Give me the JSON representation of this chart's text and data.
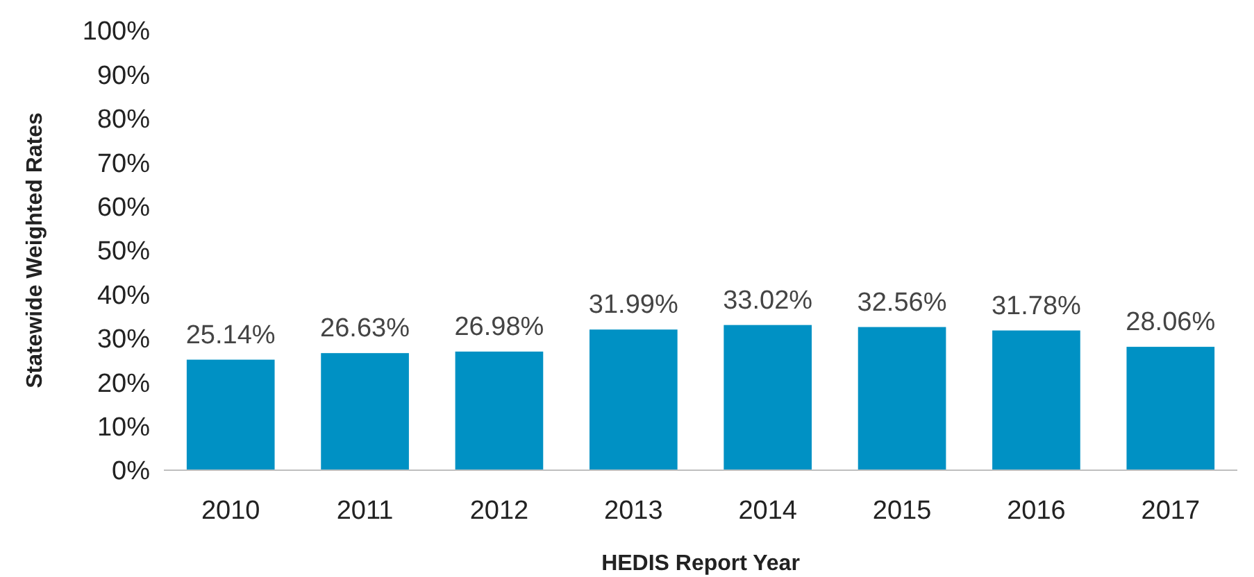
{
  "chart_data": {
    "type": "bar",
    "xlabel": "HEDIS Report Year",
    "ylabel": "Statewide Weighted Rates",
    "categories": [
      "2010",
      "2011",
      "2012",
      "2013",
      "2014",
      "2015",
      "2016",
      "2017"
    ],
    "values": [
      25.14,
      26.63,
      26.98,
      31.99,
      33.02,
      32.56,
      31.78,
      28.06
    ],
    "value_labels": [
      "25.14%",
      "26.63%",
      "26.98%",
      "31.99%",
      "33.02%",
      "32.56%",
      "31.78%",
      "28.06%"
    ],
    "color": "#0091c4",
    "ylim": [
      0,
      100
    ],
    "yticks": [
      {
        "value": 0,
        "label": "0%"
      },
      {
        "value": 10,
        "label": "10%"
      },
      {
        "value": 20,
        "label": "20%"
      },
      {
        "value": 30,
        "label": "30%"
      },
      {
        "value": 40,
        "label": "40%"
      },
      {
        "value": 50,
        "label": "50%"
      },
      {
        "value": 60,
        "label": "60%"
      },
      {
        "value": 70,
        "label": "70%"
      },
      {
        "value": 80,
        "label": "80%"
      },
      {
        "value": 90,
        "label": "90%"
      },
      {
        "value": 100,
        "label": "100%"
      }
    ],
    "grid": false
  }
}
